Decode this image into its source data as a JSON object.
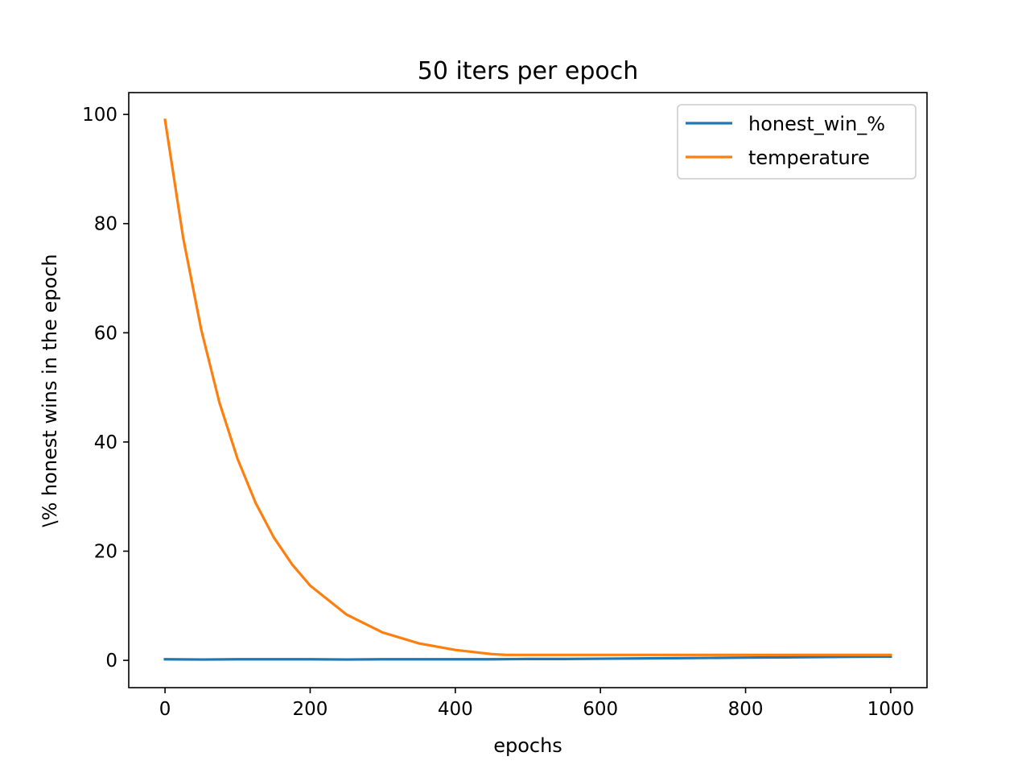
{
  "chart_data": {
    "type": "line",
    "title": "50 iters per epoch",
    "xlabel": "epochs",
    "ylabel": "\\% honest wins in the epoch",
    "xlim": [
      -50,
      1050
    ],
    "ylim": [
      -5,
      104
    ],
    "xticks": [
      0,
      200,
      400,
      600,
      800,
      1000
    ],
    "yticks": [
      0,
      20,
      40,
      60,
      80,
      100
    ],
    "legend_position": "upper right",
    "series": [
      {
        "name": "honest_win_%",
        "color": "#1f77b4",
        "x": [
          0,
          50,
          100,
          150,
          200,
          250,
          300,
          350,
          400,
          450,
          500,
          550,
          600,
          650,
          700,
          750,
          800,
          850,
          900,
          950,
          1000
        ],
        "y": [
          0.2,
          0.15,
          0.2,
          0.2,
          0.2,
          0.15,
          0.2,
          0.2,
          0.2,
          0.2,
          0.25,
          0.25,
          0.3,
          0.35,
          0.4,
          0.45,
          0.5,
          0.55,
          0.6,
          0.65,
          0.7
        ]
      },
      {
        "name": "temperature",
        "color": "#ff7f0e",
        "x": [
          0,
          25,
          50,
          75,
          100,
          125,
          150,
          175,
          200,
          250,
          300,
          350,
          400,
          450,
          470,
          500,
          600,
          700,
          800,
          900,
          1000
        ],
        "y": [
          99,
          77.4,
          60.5,
          47.2,
          36.9,
          28.8,
          22.5,
          17.6,
          13.7,
          8.4,
          5.1,
          3.1,
          1.9,
          1.15,
          1.0,
          1.0,
          1.0,
          1.0,
          1.0,
          1.0,
          1.0
        ]
      }
    ]
  }
}
